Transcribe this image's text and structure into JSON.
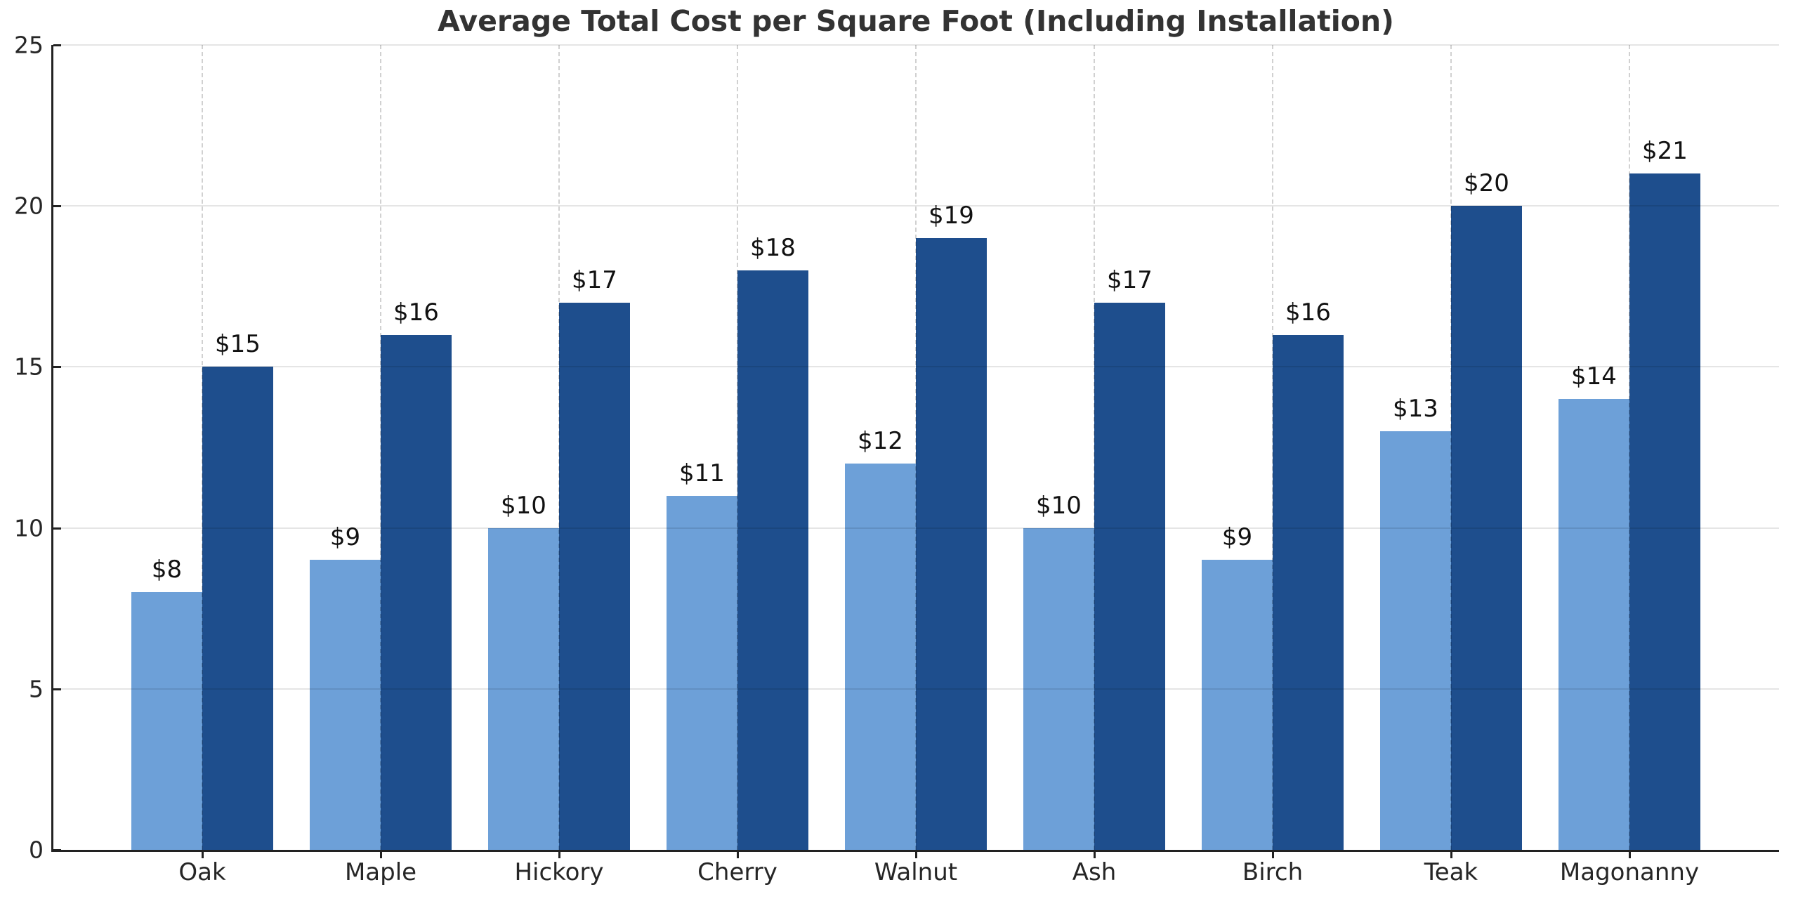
{
  "figure": {
    "title": "Average Total Cost per Square Foot (Including Installation)"
  },
  "chart_data": {
    "type": "bar",
    "title": "Average Total Cost per Square Foot (Including Installation)",
    "categories": [
      "Oak",
      "Maple",
      "Hickory",
      "Cherry",
      "Walnut",
      "Ash",
      "Birch",
      "Teak",
      "Magonanny"
    ],
    "series": [
      {
        "id": "cost-low",
        "color": "#6da0d8",
        "values": [
          8,
          9,
          10,
          11,
          12,
          10,
          9,
          13,
          14
        ],
        "bar_labels": [
          "$8",
          "$9",
          "$10",
          "$11",
          "$12",
          "$10",
          "$9",
          "$13",
          "$14"
        ]
      },
      {
        "id": "cost-high",
        "color": "#1e4e8d",
        "values": [
          15,
          16,
          17,
          18,
          19,
          17,
          16,
          20,
          21
        ],
        "bar_labels": [
          "$15",
          "$16",
          "$17",
          "$18",
          "$19",
          "$17",
          "$16",
          "$20",
          "$21"
        ]
      }
    ],
    "xlabel": "",
    "ylabel": "",
    "ylim": [
      0,
      25
    ],
    "yticks": [
      0,
      5,
      10,
      15,
      20,
      25
    ],
    "ytick_labels": [
      "0",
      "5",
      "10",
      "15",
      "20",
      "25"
    ],
    "grid": {
      "horizontal": "solid-light",
      "vertical": "dashed-light"
    },
    "legend": "none",
    "value_label_prefix": "$"
  },
  "colors": {
    "background": "#ffffff",
    "bar_light": "#6da0d8",
    "bar_dark": "#1e4e8d",
    "axis": "#222222",
    "title_text": "#333333",
    "tick_text": "#262626",
    "value_label_text": "#111111"
  }
}
